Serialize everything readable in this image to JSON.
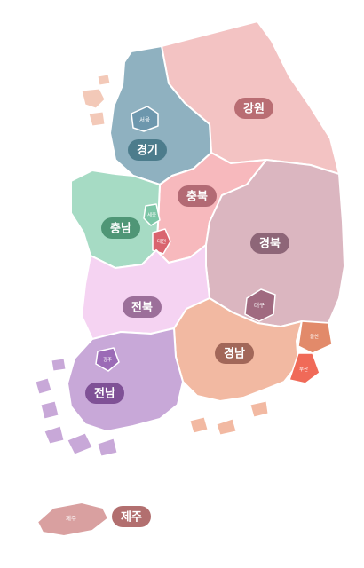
{
  "provinces": {
    "gangwon": {
      "label": "강원",
      "fill": "#f3c3c3",
      "pill": "#b96d73"
    },
    "gyeonggi": {
      "label": "경기",
      "fill": "#8fb1c0",
      "pill": "#4c7c8c"
    },
    "chungbuk": {
      "label": "충북",
      "fill": "#f7b9bd",
      "pill": "#b36a74"
    },
    "chungnam": {
      "label": "충남",
      "fill": "#a6dbc4",
      "pill": "#4f9676"
    },
    "gyeongbuk": {
      "label": "경북",
      "fill": "#dbb6c0",
      "pill": "#8e6678"
    },
    "jeonbuk": {
      "label": "전북",
      "fill": "#f5d3f2",
      "pill": "#9c6f9a"
    },
    "gyeongnam": {
      "label": "경남",
      "fill": "#f2b9a2",
      "pill": "#a26759"
    },
    "jeonnam": {
      "label": "전남",
      "fill": "#c8a8d8",
      "pill": "#7f5196"
    },
    "jeju": {
      "label": "제주",
      "fill": "#d9a0a0",
      "pill": "#b26f6f",
      "city_label": "제주"
    }
  },
  "cities": {
    "seoul": {
      "label": "서울",
      "fill": "#6d97ad"
    },
    "daejeon": {
      "label": "대전",
      "fill": "#d9646e"
    },
    "sejong": {
      "label": "세종",
      "fill": "#7cc5a6"
    },
    "daegu": {
      "label": "대구",
      "fill": "#a06a80"
    },
    "ulsan": {
      "label": "울산",
      "fill": "#e28a6a"
    },
    "busan": {
      "label": "부산",
      "fill": "#f06a58"
    },
    "gwangju": {
      "label": "광주",
      "fill": "#9b6bb6"
    }
  }
}
